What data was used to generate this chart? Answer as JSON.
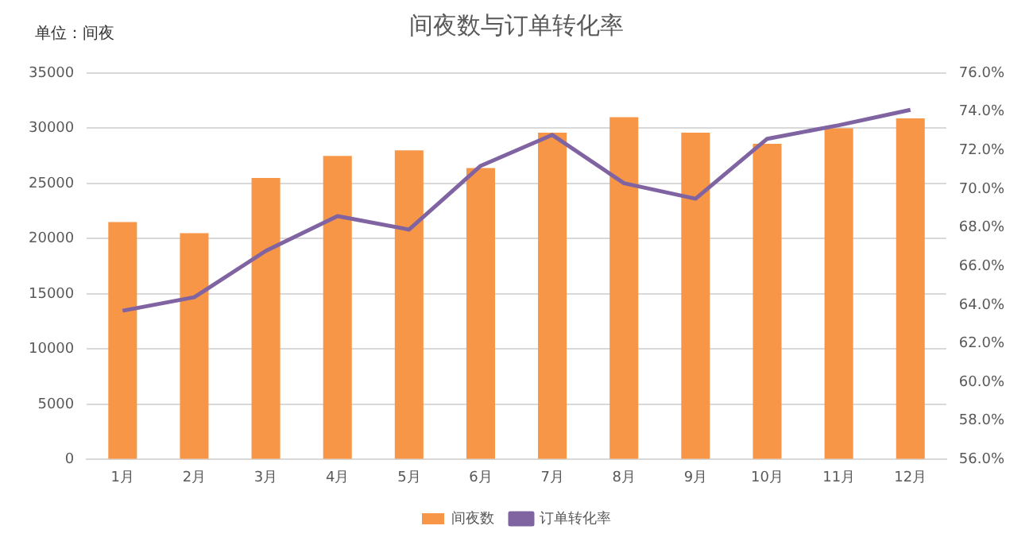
{
  "chart_data": {
    "type": "bar",
    "title": "间夜数与订单转化率",
    "annotations": [
      "单位：间夜"
    ],
    "categories": [
      "1月",
      "2月",
      "3月",
      "4月",
      "5月",
      "6月",
      "7月",
      "8月",
      "9月",
      "10月",
      "11月",
      "12月"
    ],
    "series": [
      {
        "name": "间夜数",
        "color": "#f79646",
        "values": [
          21500,
          20500,
          25500,
          27500,
          28000,
          26400,
          29600,
          31000,
          29600,
          28600,
          30000,
          30900
        ]
      },
      {
        "name": "订单转化率",
        "type": "line",
        "axis": "y2",
        "color": "#8064a2",
        "values": [
          63.7,
          64.4,
          66.8,
          68.6,
          67.9,
          71.2,
          72.8,
          70.3,
          69.5,
          72.6,
          73.3,
          74.1
        ]
      }
    ],
    "ylim": [
      0,
      35000
    ],
    "yticks": [
      0,
      5000,
      10000,
      15000,
      20000,
      25000,
      30000,
      35000
    ],
    "y2lim": [
      56,
      76
    ],
    "y2ticks": [
      {
        "value": 56,
        "label": "56.0%"
      },
      {
        "value": 58,
        "label": "58.0%"
      },
      {
        "value": 60,
        "label": "60.0%"
      },
      {
        "value": 62,
        "label": "62.0%"
      },
      {
        "value": 64,
        "label": "64.0%"
      },
      {
        "value": 66,
        "label": "66.0%"
      },
      {
        "value": 68,
        "label": "68.0%"
      },
      {
        "value": 70,
        "label": "70.0%"
      },
      {
        "value": 72,
        "label": "72.0%"
      },
      {
        "value": 74,
        "label": "74.0%"
      },
      {
        "value": 76,
        "label": "76.0%"
      }
    ],
    "grid": "y",
    "legend": "bottom",
    "marker": "none"
  }
}
